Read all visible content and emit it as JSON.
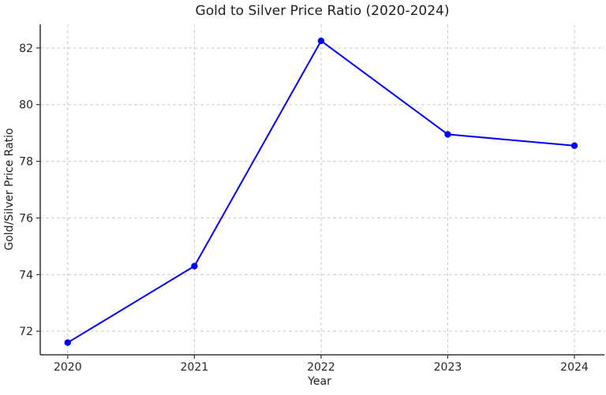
{
  "chart_data": {
    "type": "line",
    "title": "Gold to Silver Price Ratio (2020-2024)",
    "xlabel": "Year",
    "ylabel": "Gold/Silver Price Ratio",
    "categories": [
      "2020",
      "2021",
      "2022",
      "2023",
      "2024"
    ],
    "series": [
      {
        "name": "Gold/Silver Price Ratio",
        "values": [
          71.6,
          74.3,
          82.25,
          78.95,
          78.55
        ]
      }
    ],
    "y_ticks": [
      72,
      74,
      76,
      78,
      80,
      82
    ],
    "ylim": [
      71.17,
      82.83
    ],
    "grid": true,
    "grid_style": "dashed",
    "legend": "none",
    "marker": "circle",
    "colors": {
      "line": "#0000ff",
      "marker": "#0000ff",
      "grid": "#c9c9c9",
      "axis": "#333333",
      "text": "#262626",
      "background": "#ffffff"
    }
  }
}
